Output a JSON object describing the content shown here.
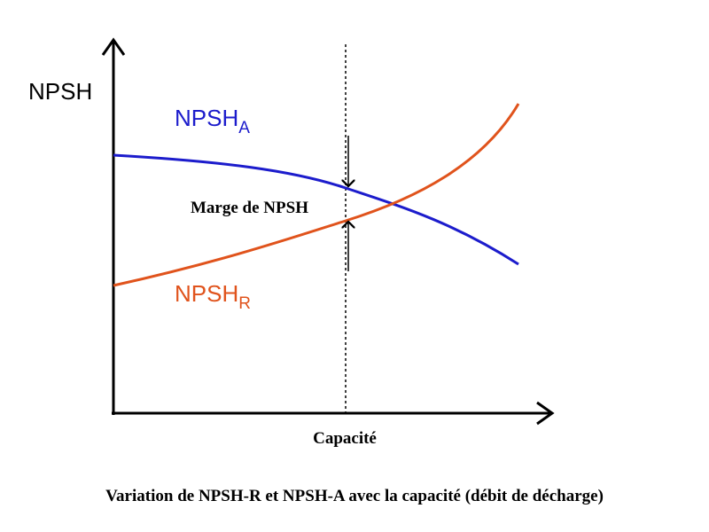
{
  "y_axis_label": "NPSH",
  "curve_a_label": {
    "text": "NPSH",
    "subscript": "A"
  },
  "curve_r_label": {
    "text": "NPSH",
    "subscript": "R"
  },
  "margin_label": "Marge de NPSH",
  "x_axis_label": "Capacité",
  "caption": "Variation de NPSH-R et NPSH-A avec la capacité (débit de décharge)"
}
